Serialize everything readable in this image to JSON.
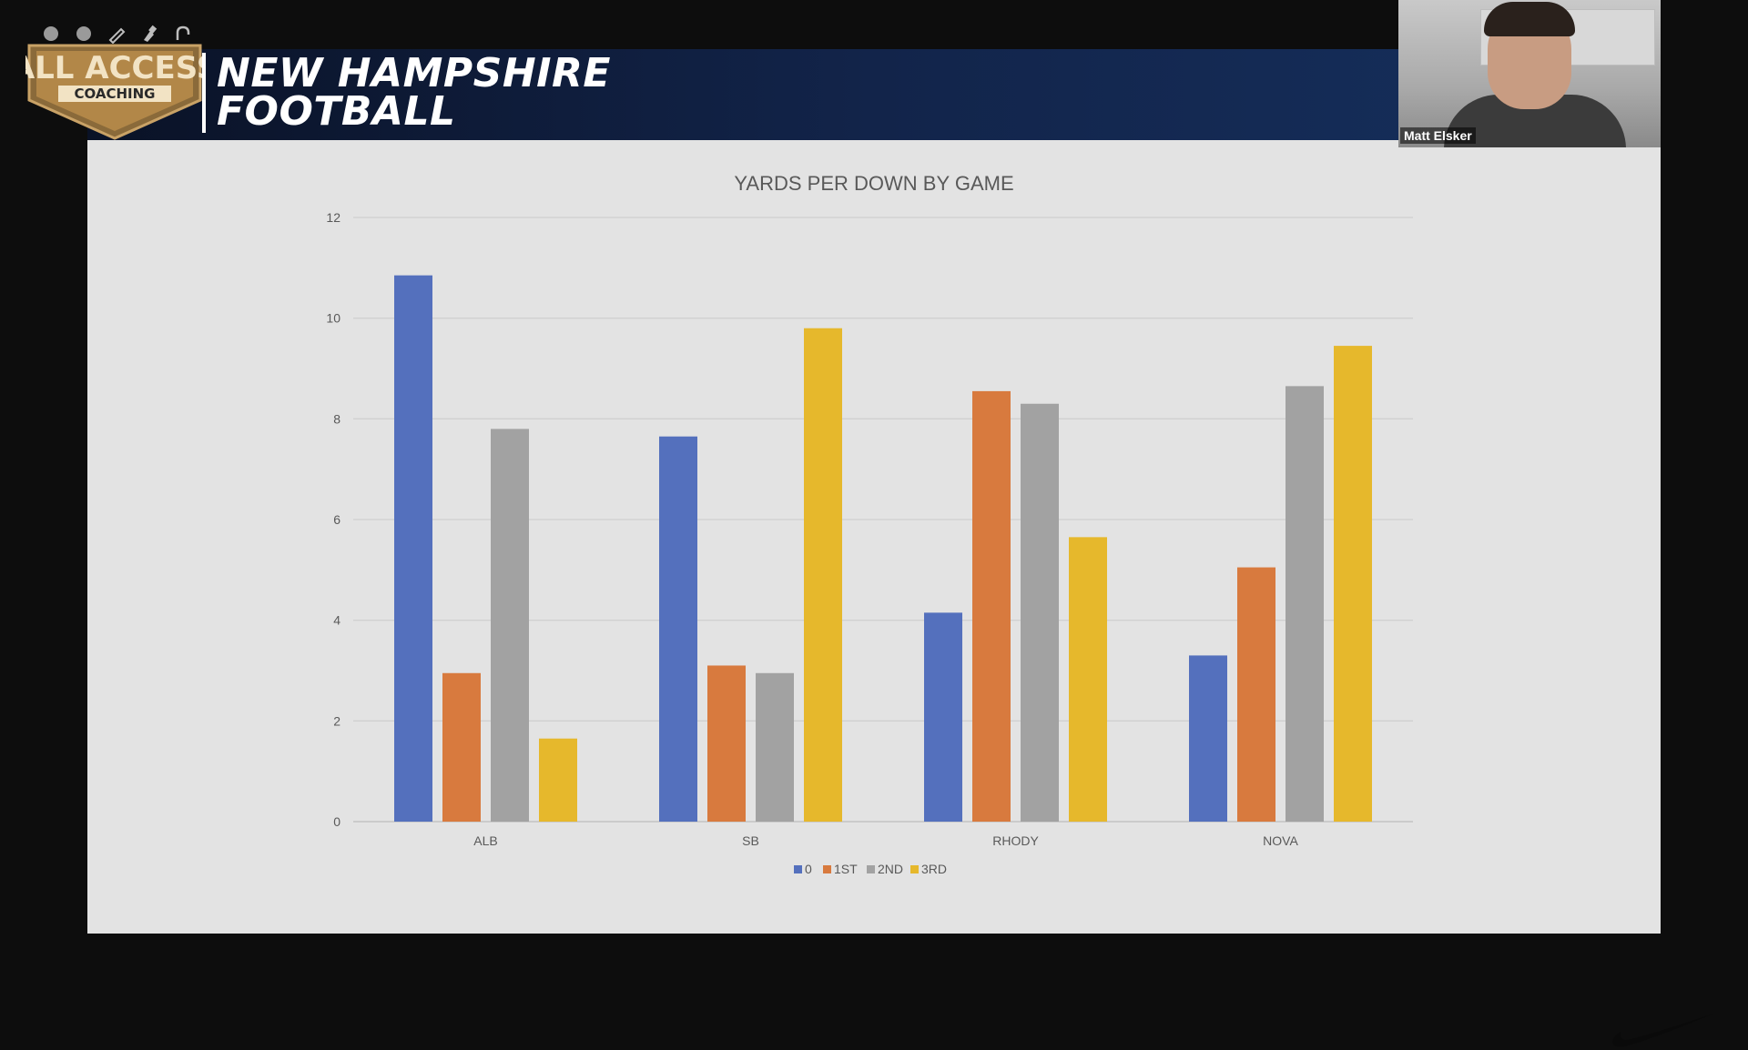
{
  "toolbar": {
    "icons": [
      "circle-icon",
      "circle-icon",
      "pencil-icon",
      "marker-icon",
      "eraser-icon"
    ]
  },
  "branding": {
    "logo_top": "ALL ACCESS",
    "logo_bottom": "COACHING",
    "title_line1": "NEW HAMPSHIRE",
    "title_line2": "FOOTBALL",
    "sponsor_icon": "nike-swoosh-icon"
  },
  "video": {
    "participant_name": "Matt Elsker"
  },
  "colors": {
    "series": [
      "#5470bd",
      "#d87a3e",
      "#a2a2a2",
      "#e6b82c"
    ],
    "banner": "#12244a",
    "slide_bg": "#e3e3e3"
  },
  "chart_data": {
    "type": "bar",
    "title": "YARDS PER DOWN BY GAME",
    "xlabel": "",
    "ylabel": "",
    "categories": [
      "ALB",
      "SB",
      "RHODY",
      "NOVA"
    ],
    "series": [
      {
        "name": "0",
        "values": [
          10.85,
          7.65,
          4.15,
          3.3
        ]
      },
      {
        "name": "1ST",
        "values": [
          2.95,
          3.1,
          8.55,
          5.05
        ]
      },
      {
        "name": "2ND",
        "values": [
          7.8,
          2.95,
          8.3,
          8.65
        ]
      },
      {
        "name": "3RD",
        "values": [
          1.65,
          9.8,
          5.65,
          9.45
        ]
      }
    ],
    "ylim": [
      0,
      12
    ],
    "yticks": [
      "0",
      "2",
      "4",
      "6",
      "8",
      "10",
      "12"
    ],
    "grid": true,
    "legend": "bottom-center"
  }
}
